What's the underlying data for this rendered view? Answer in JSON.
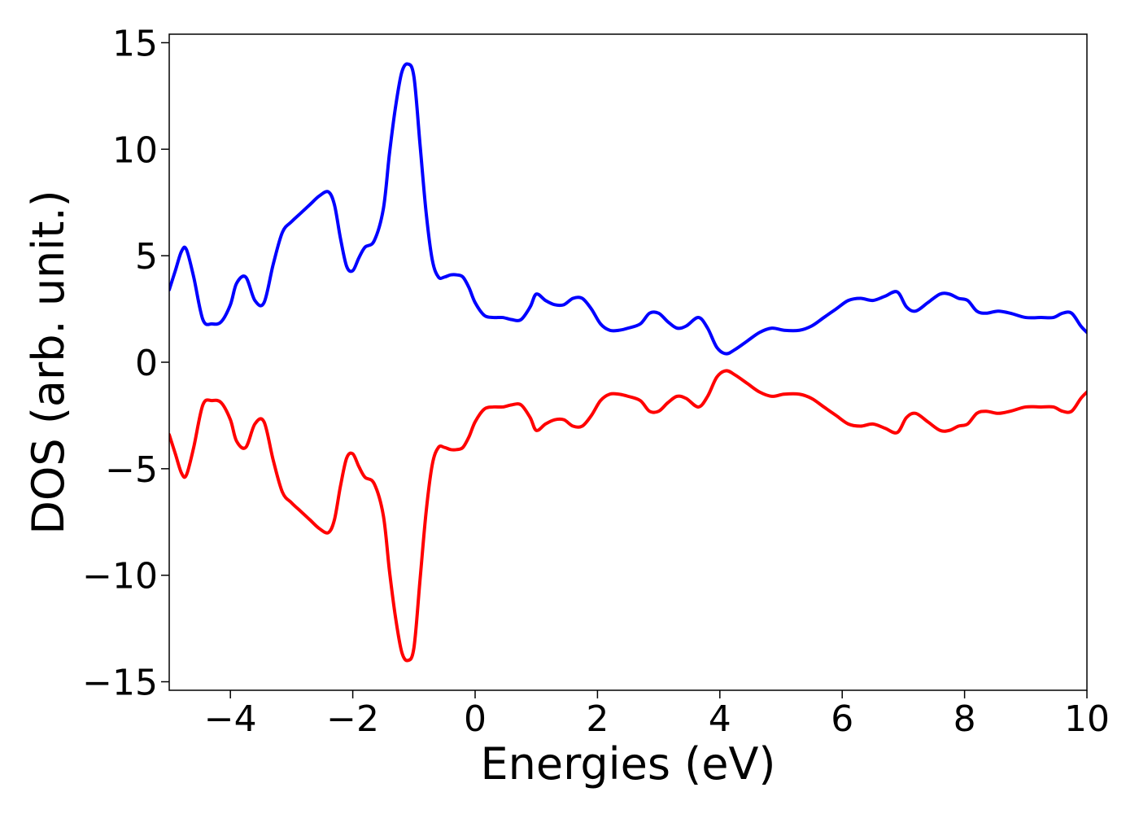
{
  "chart_data": {
    "type": "line",
    "title": "",
    "xlabel": "Energies (eV)",
    "ylabel": "DOS (arb. unit.)",
    "xlim": [
      -5,
      10
    ],
    "ylim": [
      -15.4,
      15.4
    ],
    "xticks": [
      -4,
      -2,
      0,
      2,
      4,
      6,
      8,
      10
    ],
    "xtick_labels": [
      "−4",
      "−2",
      "0",
      "2",
      "4",
      "6",
      "8",
      "10"
    ],
    "yticks": [
      15,
      10,
      5,
      0,
      -5,
      -10,
      -15
    ],
    "ytick_labels": [
      "15",
      "10",
      "5",
      "0",
      "−5",
      "−10",
      "−15"
    ],
    "grid": false,
    "legend": "none",
    "series": [
      {
        "color": "#0000ff",
        "x": [
          -5.0,
          -4.9,
          -4.8,
          -4.72,
          -4.6,
          -4.45,
          -4.3,
          -4.15,
          -4.0,
          -3.9,
          -3.75,
          -3.6,
          -3.45,
          -3.3,
          -3.15,
          -3.0,
          -2.85,
          -2.7,
          -2.55,
          -2.4,
          -2.3,
          -2.2,
          -2.1,
          -2.0,
          -1.9,
          -1.8,
          -1.65,
          -1.5,
          -1.4,
          -1.3,
          -1.2,
          -1.1,
          -1.0,
          -0.9,
          -0.8,
          -0.7,
          -0.6,
          -0.5,
          -0.4,
          -0.3,
          -0.2,
          -0.1,
          0.0,
          0.15,
          0.3,
          0.45,
          0.6,
          0.75,
          0.9,
          1.0,
          1.15,
          1.3,
          1.45,
          1.6,
          1.75,
          1.9,
          2.05,
          2.2,
          2.35,
          2.5,
          2.7,
          2.85,
          3.0,
          3.15,
          3.3,
          3.45,
          3.65,
          3.8,
          3.95,
          4.1,
          4.25,
          4.45,
          4.65,
          4.85,
          5.05,
          5.3,
          5.5,
          5.7,
          5.9,
          6.1,
          6.3,
          6.5,
          6.7,
          6.9,
          7.05,
          7.2,
          7.4,
          7.6,
          7.75,
          7.9,
          8.05,
          8.2,
          8.35,
          8.55,
          8.75,
          9.0,
          9.25,
          9.45,
          9.6,
          9.75,
          9.9,
          10.0
        ],
        "values": [
          3.4,
          4.3,
          5.2,
          5.3,
          4.0,
          2.0,
          1.8,
          1.9,
          2.7,
          3.7,
          4.0,
          2.9,
          2.8,
          4.6,
          6.1,
          6.6,
          7.0,
          7.4,
          7.8,
          8.0,
          7.4,
          5.8,
          4.5,
          4.3,
          4.9,
          5.4,
          5.7,
          7.2,
          9.8,
          12.0,
          13.6,
          14.0,
          13.4,
          10.2,
          7.0,
          4.8,
          4.0,
          4.0,
          4.1,
          4.1,
          4.0,
          3.5,
          2.8,
          2.2,
          2.1,
          2.1,
          2.0,
          2.0,
          2.6,
          3.2,
          2.9,
          2.7,
          2.7,
          3.0,
          3.0,
          2.5,
          1.8,
          1.5,
          1.5,
          1.6,
          1.8,
          2.3,
          2.3,
          1.9,
          1.6,
          1.7,
          2.1,
          1.6,
          0.7,
          0.4,
          0.6,
          1.0,
          1.4,
          1.6,
          1.5,
          1.5,
          1.7,
          2.1,
          2.5,
          2.9,
          3.0,
          2.9,
          3.1,
          3.3,
          2.6,
          2.4,
          2.8,
          3.2,
          3.2,
          3.0,
          2.9,
          2.4,
          2.3,
          2.4,
          2.3,
          2.1,
          2.1,
          2.1,
          2.3,
          2.3,
          1.7,
          1.4
        ]
      },
      {
        "color": "#ff0000",
        "x": [
          -5.0,
          -4.9,
          -4.8,
          -4.72,
          -4.6,
          -4.45,
          -4.3,
          -4.15,
          -4.0,
          -3.9,
          -3.75,
          -3.6,
          -3.45,
          -3.3,
          -3.15,
          -3.0,
          -2.85,
          -2.7,
          -2.55,
          -2.4,
          -2.3,
          -2.2,
          -2.1,
          -2.0,
          -1.9,
          -1.8,
          -1.65,
          -1.5,
          -1.4,
          -1.3,
          -1.2,
          -1.1,
          -1.0,
          -0.9,
          -0.8,
          -0.7,
          -0.6,
          -0.5,
          -0.4,
          -0.3,
          -0.2,
          -0.1,
          0.0,
          0.15,
          0.3,
          0.45,
          0.6,
          0.75,
          0.9,
          1.0,
          1.15,
          1.3,
          1.45,
          1.6,
          1.75,
          1.9,
          2.05,
          2.2,
          2.35,
          2.5,
          2.7,
          2.85,
          3.0,
          3.15,
          3.3,
          3.45,
          3.65,
          3.8,
          3.95,
          4.1,
          4.25,
          4.45,
          4.65,
          4.85,
          5.05,
          5.3,
          5.5,
          5.7,
          5.9,
          6.1,
          6.3,
          6.5,
          6.7,
          6.9,
          7.05,
          7.2,
          7.4,
          7.6,
          7.75,
          7.9,
          8.05,
          8.2,
          8.35,
          8.55,
          8.75,
          9.0,
          9.25,
          9.45,
          9.6,
          9.75,
          9.9,
          10.0
        ],
        "values": [
          -3.4,
          -4.3,
          -5.2,
          -5.3,
          -4.0,
          -2.0,
          -1.8,
          -1.9,
          -2.7,
          -3.7,
          -4.0,
          -2.9,
          -2.8,
          -4.6,
          -6.1,
          -6.6,
          -7.0,
          -7.4,
          -7.8,
          -8.0,
          -7.4,
          -5.8,
          -4.5,
          -4.3,
          -4.9,
          -5.4,
          -5.7,
          -7.2,
          -9.8,
          -12.0,
          -13.6,
          -14.0,
          -13.4,
          -10.2,
          -7.0,
          -4.8,
          -4.0,
          -4.0,
          -4.1,
          -4.1,
          -4.0,
          -3.5,
          -2.8,
          -2.2,
          -2.1,
          -2.1,
          -2.0,
          -2.0,
          -2.6,
          -3.2,
          -2.9,
          -2.7,
          -2.7,
          -3.0,
          -3.0,
          -2.5,
          -1.8,
          -1.5,
          -1.5,
          -1.6,
          -1.8,
          -2.3,
          -2.3,
          -1.9,
          -1.6,
          -1.7,
          -2.1,
          -1.6,
          -0.7,
          -0.4,
          -0.6,
          -1.0,
          -1.4,
          -1.6,
          -1.5,
          -1.5,
          -1.7,
          -2.1,
          -2.5,
          -2.9,
          -3.0,
          -2.9,
          -3.1,
          -3.3,
          -2.6,
          -2.4,
          -2.8,
          -3.2,
          -3.2,
          -3.0,
          -2.9,
          -2.4,
          -2.3,
          -2.4,
          -2.3,
          -2.1,
          -2.1,
          -2.1,
          -2.3,
          -2.3,
          -1.7,
          -1.4
        ]
      }
    ]
  }
}
